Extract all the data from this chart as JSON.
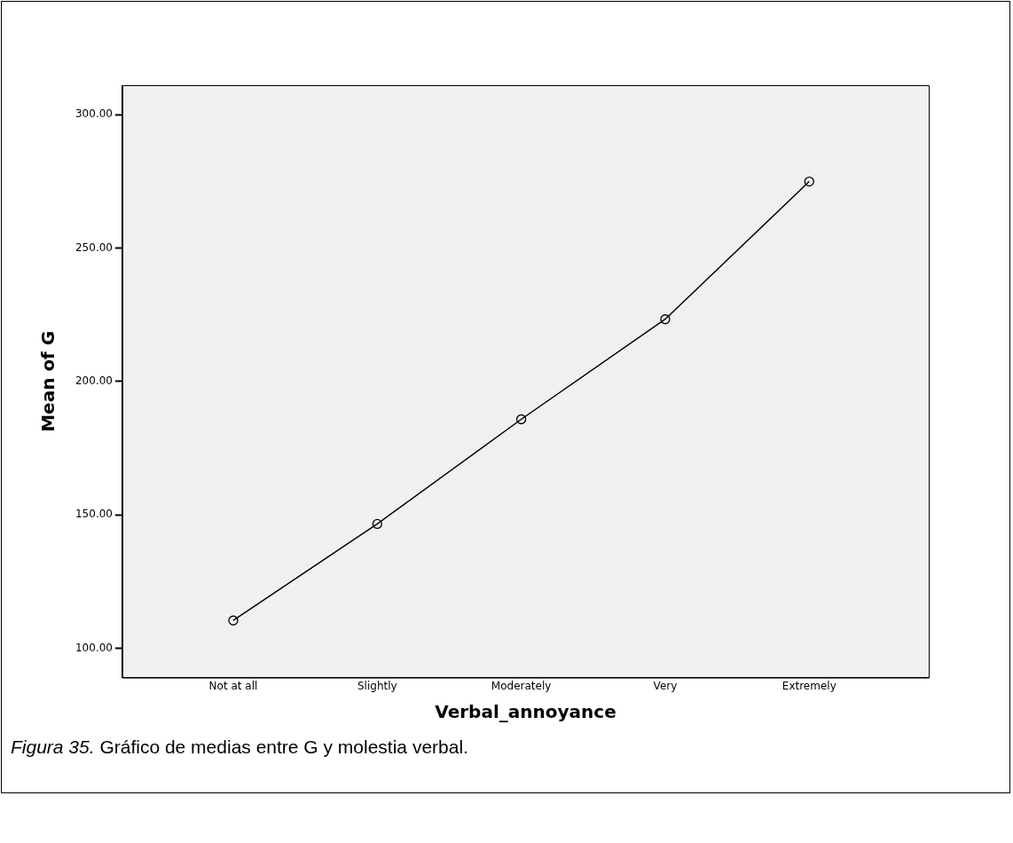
{
  "chart_data": {
    "type": "line",
    "xlabel": "Verbal_annoyance",
    "ylabel": "Mean of G",
    "categories": [
      "Not at all",
      "Slightly",
      "Moderately",
      "Very",
      "Extremely"
    ],
    "series": [
      {
        "color": "#000000",
        "values": [
          110.4,
          146.6,
          185.8,
          223.3,
          274.9
        ]
      }
    ],
    "ylim": [
      89,
      311
    ],
    "yticks": [
      {
        "value": 100,
        "label": "100.00"
      },
      {
        "value": 150,
        "label": "150.00"
      },
      {
        "value": 200,
        "label": "200.00"
      },
      {
        "value": 250,
        "label": "250.00"
      },
      {
        "value": 300,
        "label": "300.00"
      }
    ],
    "grid": false,
    "legend": false,
    "marker": "circle",
    "line_style": "solid",
    "annotations": [
      "Figura 35. Gráfico de medias entre G y molestia verbal."
    ]
  }
}
